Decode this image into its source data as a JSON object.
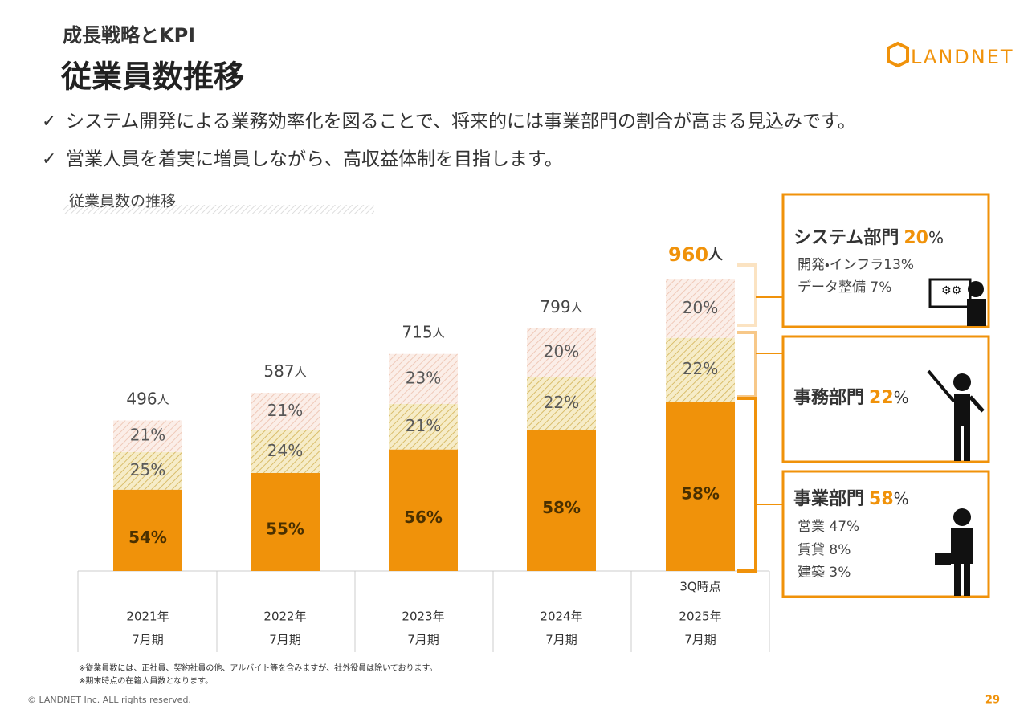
{
  "header": {
    "section": "成長戦略とKPI",
    "title": "従業員数推移",
    "logo": "LANDNET"
  },
  "bullets": [
    "システム開発による業務効率化を図ることで、将来的には事業部門の割合が高まる見込みです。",
    "営業人員を着実に増員しながら、高収益体制を目指します。"
  ],
  "chart_data": {
    "type": "bar",
    "title": "従業員数の推移",
    "categories": [
      "2021年",
      "2022年",
      "2023年",
      "2024年",
      "2025年"
    ],
    "periods": [
      "7月期",
      "7月期",
      "7月期",
      "7月期",
      "7月期"
    ],
    "category_notes": [
      null,
      null,
      null,
      null,
      "3Q時点"
    ],
    "totals": [
      496,
      587,
      715,
      799,
      960
    ],
    "total_unit": "人",
    "series": [
      {
        "name": "事業部門",
        "color": "#f0920a",
        "values": [
          54,
          55,
          56,
          58,
          58
        ],
        "value_labels": [
          "54%",
          "55%",
          "56%",
          "58%",
          "58%"
        ]
      },
      {
        "name": "事務部門",
        "color": "#e6cf8c",
        "values": [
          25,
          24,
          21,
          22,
          22
        ],
        "value_labels": [
          "25%",
          "24%",
          "21%",
          "22%",
          "22%"
        ]
      },
      {
        "name": "システム部門",
        "color": "#f3d9cc",
        "values": [
          21,
          21,
          23,
          20,
          20
        ],
        "value_labels": [
          "21%",
          "21%",
          "23%",
          "20%",
          "20%"
        ]
      }
    ]
  },
  "panels": [
    {
      "title": "システム部門",
      "percent": "20",
      "unit": "%",
      "items": [
        "開発・インフラ13%",
        "データ整備 7%"
      ]
    },
    {
      "title": "事務部門",
      "percent": "22",
      "unit": "%",
      "items": []
    },
    {
      "title": "事業部門",
      "percent": "58",
      "unit": "%",
      "items": [
        "営業 47%",
        "賃貸 8%",
        "建築 3%"
      ]
    }
  ],
  "footnotes": [
    "※従業員数には、正社員、契約社員の他、アルバイト等を含みますが、社外役員は除いております。",
    "※期末時点の在籍人員数となります。"
  ],
  "footer": {
    "copyright": "© LANDNET Inc. ALL rights reserved.",
    "page": "29"
  }
}
